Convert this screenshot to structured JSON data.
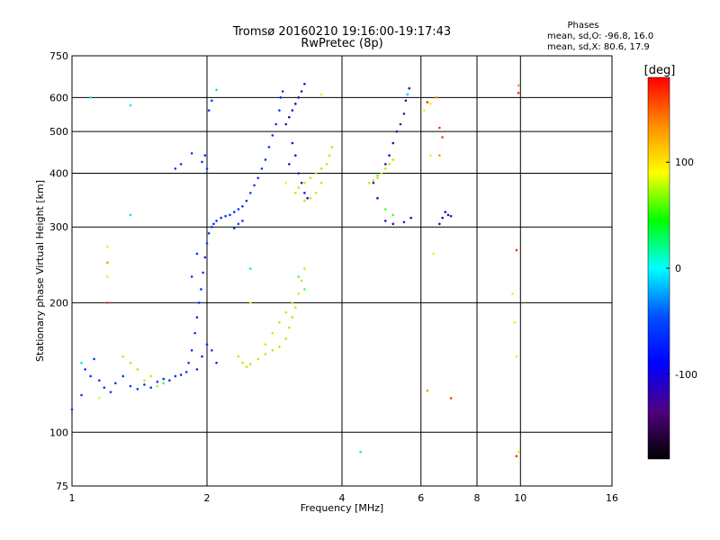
{
  "chart_data": {
    "type": "scatter",
    "title": "Tromsø 20160210 19:16:00-19:17:43",
    "subtitle": "RwPretec (8p)",
    "xlabel": "Frequency [MHz]",
    "ylabel": "Stationary phase Virtual Height [km]",
    "x_scale": "log",
    "y_scale": "log",
    "xlim": [
      1,
      16
    ],
    "ylim": [
      75,
      750
    ],
    "x_ticks": [
      1,
      2,
      4,
      6,
      8,
      10,
      16
    ],
    "y_ticks": [
      75,
      100,
      200,
      300,
      400,
      500,
      600,
      750
    ],
    "grid": true,
    "stats": {
      "heading": "Phases",
      "line_o": "mean, sd,O: -96.8, 16.0",
      "line_x": "mean, sd,X:  80.6, 17.9"
    },
    "colorbar": {
      "label": "[deg]",
      "ticks": [
        100,
        0,
        -100
      ],
      "range": [
        -180,
        180
      ],
      "colors": [
        "#ff0000",
        "#ff8c00",
        "#ffff00",
        "#00ff00",
        "#00ffff",
        "#0050ff",
        "#0000ff",
        "#500080",
        "#000000"
      ]
    },
    "series": [
      {
        "phase": -100,
        "color": "#0030ff",
        "points": [
          [
            1.0,
            113
          ],
          [
            1.05,
            122
          ],
          [
            1.07,
            140
          ],
          [
            1.1,
            135
          ],
          [
            1.12,
            148
          ],
          [
            1.15,
            132
          ],
          [
            1.18,
            127
          ],
          [
            1.22,
            124
          ],
          [
            1.25,
            130
          ],
          [
            1.3,
            135
          ],
          [
            1.35,
            128
          ],
          [
            1.4,
            126
          ],
          [
            1.45,
            129
          ],
          [
            1.5,
            127
          ],
          [
            1.55,
            131
          ],
          [
            1.6,
            133
          ],
          [
            1.65,
            132
          ],
          [
            1.7,
            135
          ],
          [
            1.75,
            136
          ],
          [
            1.8,
            138
          ],
          [
            1.82,
            145
          ],
          [
            1.85,
            155
          ],
          [
            1.88,
            170
          ],
          [
            1.9,
            185
          ],
          [
            1.92,
            200
          ],
          [
            1.94,
            215
          ],
          [
            1.96,
            235
          ],
          [
            1.98,
            255
          ],
          [
            2.0,
            275
          ],
          [
            2.02,
            290
          ],
          [
            2.05,
            300
          ],
          [
            2.07,
            305
          ],
          [
            2.1,
            310
          ],
          [
            2.15,
            315
          ],
          [
            2.2,
            318
          ],
          [
            2.25,
            320
          ],
          [
            2.3,
            325
          ],
          [
            2.35,
            330
          ],
          [
            2.4,
            335
          ],
          [
            2.45,
            345
          ],
          [
            2.5,
            360
          ],
          [
            2.55,
            375
          ],
          [
            2.6,
            390
          ],
          [
            2.65,
            410
          ],
          [
            2.7,
            430
          ],
          [
            2.75,
            460
          ],
          [
            2.8,
            490
          ],
          [
            2.85,
            520
          ],
          [
            2.9,
            560
          ],
          [
            2.92,
            600
          ],
          [
            2.95,
            620
          ],
          [
            2.0,
            410
          ],
          [
            1.98,
            440
          ],
          [
            2.02,
            560
          ],
          [
            2.05,
            590
          ],
          [
            1.95,
            425
          ],
          [
            1.85,
            445
          ],
          [
            1.75,
            420
          ],
          [
            1.7,
            410
          ],
          [
            2.3,
            298
          ],
          [
            2.35,
            305
          ],
          [
            2.4,
            310
          ],
          [
            1.9,
            140
          ],
          [
            1.95,
            150
          ],
          [
            2.0,
            160
          ],
          [
            2.05,
            155
          ],
          [
            2.1,
            145
          ],
          [
            1.85,
            230
          ],
          [
            1.9,
            260
          ]
        ]
      },
      {
        "phase": -110,
        "color": "#3000c0",
        "points": [
          [
            3.0,
            520
          ],
          [
            3.05,
            540
          ],
          [
            3.1,
            560
          ],
          [
            3.15,
            580
          ],
          [
            3.2,
            600
          ],
          [
            3.25,
            620
          ],
          [
            3.3,
            645
          ],
          [
            3.1,
            470
          ],
          [
            3.15,
            440
          ],
          [
            3.05,
            420
          ],
          [
            3.2,
            400
          ],
          [
            3.25,
            380
          ],
          [
            3.3,
            360
          ],
          [
            3.35,
            350
          ],
          [
            5.0,
            420
          ],
          [
            5.1,
            440
          ],
          [
            5.2,
            470
          ],
          [
            5.3,
            500
          ],
          [
            5.4,
            520
          ],
          [
            5.5,
            550
          ],
          [
            5.55,
            590
          ],
          [
            5.6,
            610
          ],
          [
            5.65,
            630
          ],
          [
            5.0,
            310
          ],
          [
            5.2,
            305
          ],
          [
            5.5,
            308
          ],
          [
            5.7,
            315
          ],
          [
            6.6,
            305
          ],
          [
            6.7,
            315
          ],
          [
            6.8,
            325
          ],
          [
            6.9,
            320
          ],
          [
            7.0,
            318
          ],
          [
            4.8,
            350
          ],
          [
            4.7,
            380
          ]
        ]
      },
      {
        "phase": 100,
        "color": "#c8e600",
        "points": [
          [
            2.35,
            150
          ],
          [
            2.4,
            145
          ],
          [
            2.45,
            142
          ],
          [
            2.5,
            144
          ],
          [
            2.6,
            148
          ],
          [
            2.7,
            152
          ],
          [
            2.8,
            155
          ],
          [
            2.9,
            158
          ],
          [
            3.0,
            165
          ],
          [
            3.05,
            175
          ],
          [
            3.1,
            185
          ],
          [
            3.15,
            195
          ],
          [
            3.2,
            210
          ],
          [
            3.25,
            225
          ],
          [
            3.3,
            240
          ],
          [
            3.1,
            200
          ],
          [
            3.0,
            190
          ],
          [
            2.9,
            180
          ],
          [
            2.8,
            170
          ],
          [
            2.7,
            160
          ],
          [
            3.15,
            360
          ],
          [
            3.2,
            370
          ],
          [
            3.3,
            380
          ],
          [
            3.4,
            390
          ],
          [
            3.5,
            400
          ],
          [
            3.6,
            410
          ],
          [
            3.7,
            420
          ],
          [
            3.75,
            440
          ],
          [
            3.8,
            460
          ],
          [
            3.6,
            380
          ],
          [
            3.5,
            360
          ],
          [
            3.4,
            350
          ],
          [
            3.3,
            345
          ],
          [
            4.6,
            380
          ],
          [
            4.7,
            385
          ],
          [
            4.8,
            390
          ],
          [
            4.9,
            400
          ],
          [
            5.0,
            410
          ],
          [
            5.1,
            420
          ],
          [
            5.2,
            430
          ],
          [
            1.3,
            150
          ],
          [
            1.35,
            145
          ],
          [
            1.4,
            140
          ],
          [
            1.5,
            135
          ],
          [
            1.55,
            128
          ],
          [
            1.45,
            132
          ]
        ]
      },
      {
        "phase": 30,
        "color": "#40ff40",
        "points": [
          [
            3.3,
            215
          ],
          [
            3.2,
            230
          ],
          [
            5.0,
            330
          ],
          [
            5.2,
            320
          ],
          [
            4.8,
            395
          ],
          [
            1.6,
            130
          ]
        ]
      },
      {
        "phase": 10,
        "color": "#00e0ff",
        "points": [
          [
            1.05,
            145
          ],
          [
            1.1,
            600
          ],
          [
            1.35,
            320
          ],
          [
            1.35,
            575
          ],
          [
            4.4,
            90
          ],
          [
            2.1,
            625
          ],
          [
            2.5,
            240
          ],
          [
            5.6,
            610
          ]
        ]
      },
      {
        "phase": 160,
        "color": "#ff3000",
        "points": [
          [
            6.6,
            510
          ],
          [
            6.7,
            485
          ],
          [
            7.0,
            120
          ],
          [
            9.8,
            88
          ],
          [
            9.8,
            265
          ],
          [
            9.9,
            615
          ],
          [
            1.2,
            200
          ],
          [
            6.2,
            585
          ]
        ]
      },
      {
        "phase": 130,
        "color": "#ff9900",
        "points": [
          [
            6.2,
            125
          ],
          [
            6.6,
            440
          ],
          [
            9.9,
            640
          ],
          [
            1.2,
            248
          ],
          [
            6.5,
            600
          ]
        ]
      },
      {
        "phase": 90,
        "color": "#d8ff00",
        "points": [
          [
            6.1,
            560
          ],
          [
            6.3,
            580
          ],
          [
            6.3,
            440
          ],
          [
            6.4,
            260
          ],
          [
            9.6,
            210
          ],
          [
            9.7,
            180
          ],
          [
            9.8,
            150
          ],
          [
            9.9,
            90
          ],
          [
            3.0,
            380
          ],
          [
            3.6,
            610
          ],
          [
            2.5,
            200
          ],
          [
            1.2,
            230
          ],
          [
            1.2,
            270
          ],
          [
            1.15,
            120
          ]
        ]
      }
    ]
  }
}
